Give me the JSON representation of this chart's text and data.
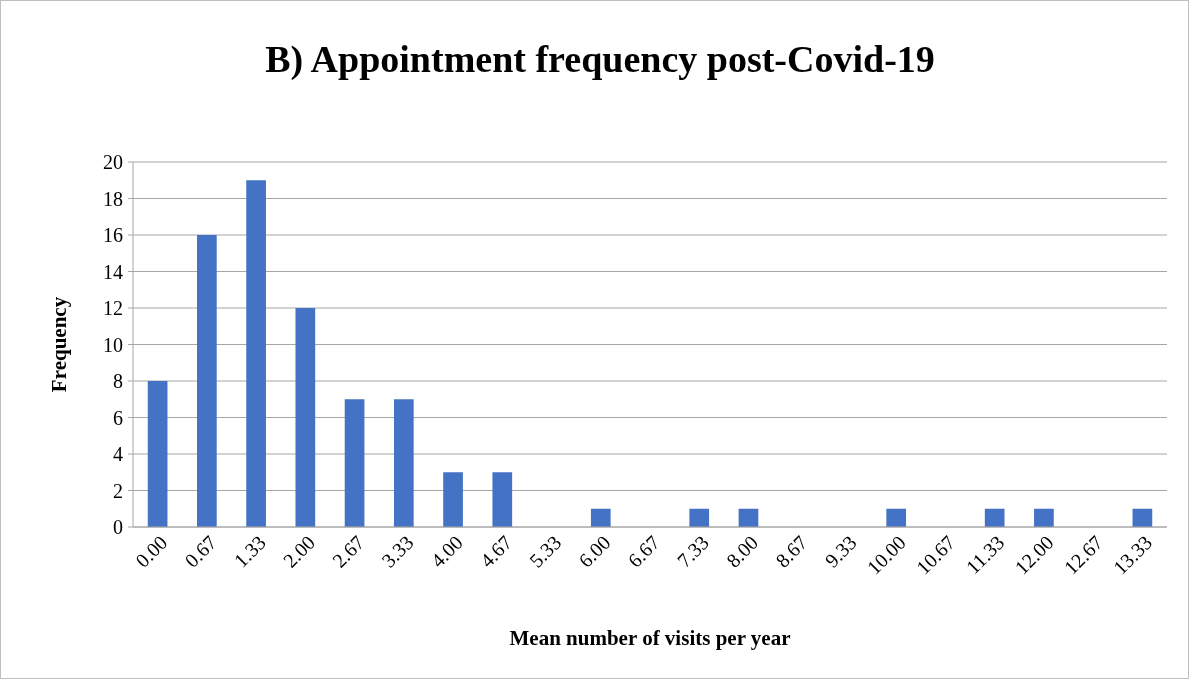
{
  "chart_data": {
    "type": "bar",
    "title": "B) Appointment frequency post-Covid-19",
    "xlabel": "Mean number of visits per year",
    "ylabel": "Frequency",
    "categories": [
      "0.00",
      "0.67",
      "1.33",
      "2.00",
      "2.67",
      "3.33",
      "4.00",
      "4.67",
      "5.33",
      "6.00",
      "6.67",
      "7.33",
      "8.00",
      "8.67",
      "9.33",
      "10.00",
      "10.67",
      "11.33",
      "12.00",
      "12.67",
      "13.33"
    ],
    "values": [
      8,
      16,
      19,
      12,
      7,
      7,
      3,
      3,
      0,
      1,
      0,
      1,
      1,
      0,
      0,
      1,
      0,
      1,
      1,
      0,
      1
    ],
    "color": "#4472c4",
    "ylim": [
      0,
      20
    ],
    "yticks": [
      0,
      2,
      4,
      6,
      8,
      10,
      12,
      14,
      16,
      18,
      20
    ],
    "grid": "y"
  }
}
